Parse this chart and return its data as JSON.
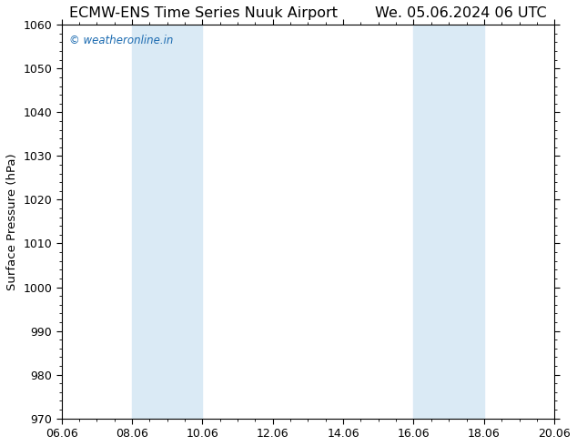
{
  "title_left": "ECMW-ENS Time Series Nuuk Airport",
  "title_right": "We. 05.06.2024 06 UTC",
  "ylabel": "Surface Pressure (hPa)",
  "ylim": [
    970,
    1060
  ],
  "yticks": [
    970,
    980,
    990,
    1000,
    1010,
    1020,
    1030,
    1040,
    1050,
    1060
  ],
  "xtick_labels": [
    "06.06",
    "08.06",
    "10.06",
    "12.06",
    "14.06",
    "16.06",
    "18.06",
    "20.06"
  ],
  "xtick_positions": [
    0,
    2,
    4,
    6,
    8,
    10,
    12,
    14
  ],
  "xlim": [
    0,
    14
  ],
  "shaded_bands": [
    {
      "x_start": 2,
      "x_end": 4
    },
    {
      "x_start": 10,
      "x_end": 12
    }
  ],
  "shade_color": "#daeaf5",
  "background_color": "#ffffff",
  "watermark_text": "© weatheronline.in",
  "watermark_color": "#1a6ab0",
  "title_fontsize": 11.5,
  "axis_fontsize": 9.5,
  "tick_fontsize": 9,
  "watermark_fontsize": 8.5
}
